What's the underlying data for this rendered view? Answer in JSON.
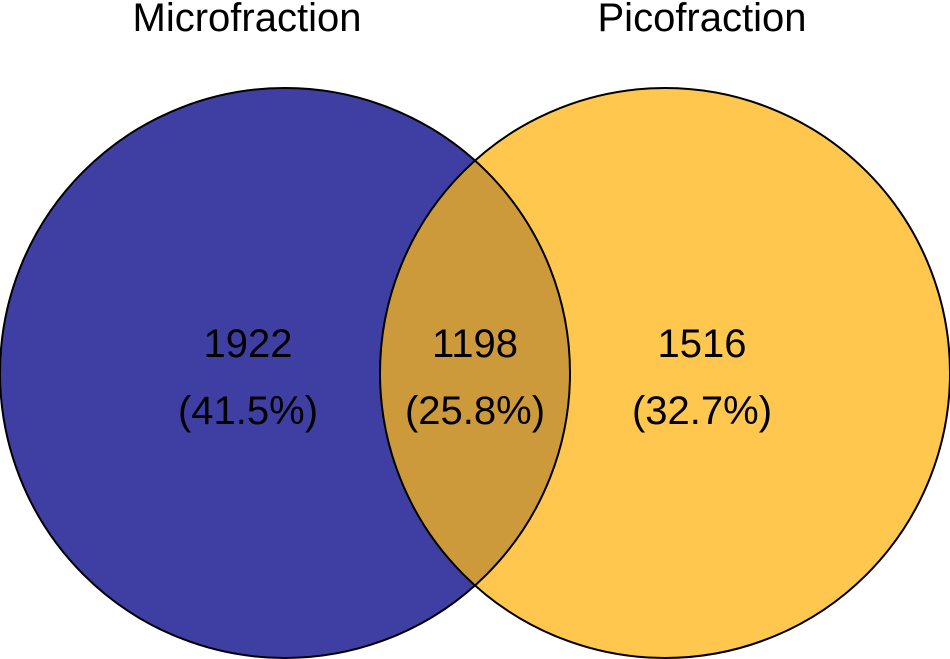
{
  "venn": {
    "sets": [
      {
        "label": "Microfraction",
        "color": "#3F3FA3"
      },
      {
        "label": "Picofraction",
        "color": "#FFC74D"
      }
    ],
    "overlap_color": "#CC9A3A",
    "regions": [
      {
        "id": "micro_only",
        "count": "1922",
        "percent": "(41.5%)"
      },
      {
        "id": "both",
        "count": "1198",
        "percent": "(25.8%)"
      },
      {
        "id": "pico_only",
        "count": "1516",
        "percent": "(32.7%)"
      }
    ]
  }
}
